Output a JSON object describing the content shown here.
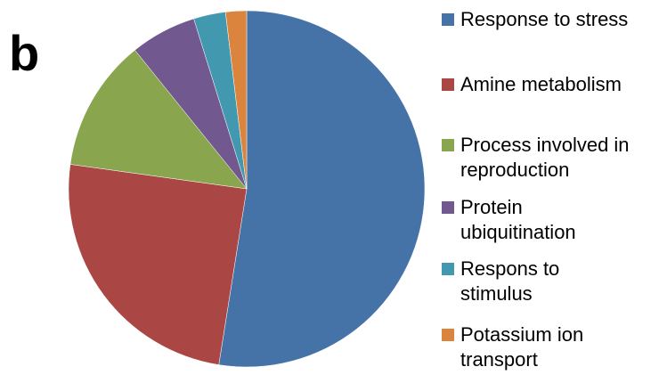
{
  "panel_label": "b",
  "chart_data": {
    "type": "pie",
    "categories": [
      "Response to stress",
      "Amine metabolism",
      "Process involved in reproduction",
      "Protein ubiquitination",
      "Respons to stimulus",
      "Potassium ion transport"
    ],
    "values": [
      52.5,
      24.7,
      12,
      6,
      2.9,
      1.9
    ],
    "colors": [
      "#4572a7",
      "#aa4643",
      "#89a54e",
      "#71588f",
      "#4198af",
      "#db843d"
    ],
    "legend": "right"
  }
}
